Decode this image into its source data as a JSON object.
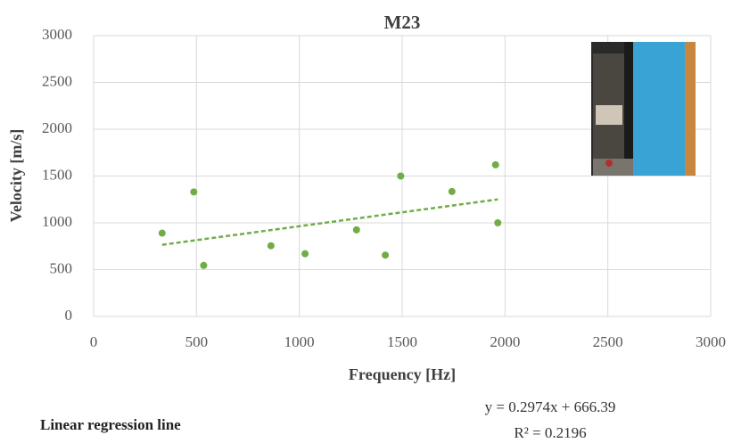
{
  "chart_data": {
    "type": "scatter",
    "title": "M23",
    "x_label": "Frequency [Hz]",
    "y_label": "Velocity [m/s]",
    "series": [
      {
        "name": "M23",
        "color": "#70ad47",
        "x": [
          333,
          487,
          535,
          862,
          1028,
          1278,
          1418,
          1493,
          1742,
          1954,
          1965
        ],
        "values": [
          890,
          1330,
          545,
          755,
          670,
          925,
          655,
          1500,
          1335,
          1620,
          1000
        ]
      }
    ],
    "xlim": [
      0,
      3000
    ],
    "xticks": [
      0,
      500,
      1000,
      1500,
      2000,
      2500,
      3000
    ],
    "ylim": [
      0,
      3000
    ],
    "yticks": [
      0,
      500,
      1000,
      1500,
      2000,
      2500,
      3000
    ],
    "grid": true,
    "trendline": {
      "slope": 0.2974,
      "intercept": 666.39,
      "equation": "y = 0.2974x + 666.39",
      "r_squared": "R² = 0.2196"
    },
    "caption": "Linear regression line"
  }
}
